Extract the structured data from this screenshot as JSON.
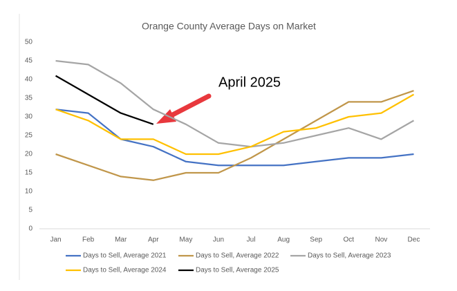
{
  "chart_data": {
    "type": "line",
    "title": "Orange County Average Days on Market",
    "annotation": "April 2025",
    "categories": [
      "Jan",
      "Feb",
      "Mar",
      "Apr",
      "May",
      "Jun",
      "Jul",
      "Aug",
      "Sep",
      "Oct",
      "Nov",
      "Dec"
    ],
    "series": [
      {
        "name": "Days to Sell, Average 2021",
        "color": "#4472c4",
        "values": [
          32,
          31,
          24,
          22,
          18,
          17,
          17,
          17,
          18,
          19,
          19,
          20
        ]
      },
      {
        "name": "Days to Sell, Average 2022",
        "color": "#c0964a",
        "values": [
          20,
          17,
          14,
          13,
          15,
          15,
          19,
          24,
          29,
          34,
          34,
          37
        ]
      },
      {
        "name": "Days to Sell, Average 2023",
        "color": "#a5a5a5",
        "values": [
          45,
          44,
          39,
          32,
          28,
          23,
          22,
          23,
          25,
          27,
          24,
          29
        ]
      },
      {
        "name": "Days to Sell, Average 2024",
        "color": "#ffc000",
        "values": [
          32,
          29,
          24,
          24,
          20,
          20,
          22,
          26,
          27,
          30,
          31,
          36
        ]
      },
      {
        "name": "Days to Sell, Average 2025",
        "color": "#000000",
        "values": [
          41,
          36,
          31,
          28,
          null,
          null,
          null,
          null,
          null,
          null,
          null,
          null
        ]
      }
    ],
    "ylim": [
      0,
      50
    ],
    "yticks": [
      0,
      5,
      10,
      15,
      20,
      25,
      30,
      35,
      40,
      45,
      50
    ],
    "grid": false
  }
}
